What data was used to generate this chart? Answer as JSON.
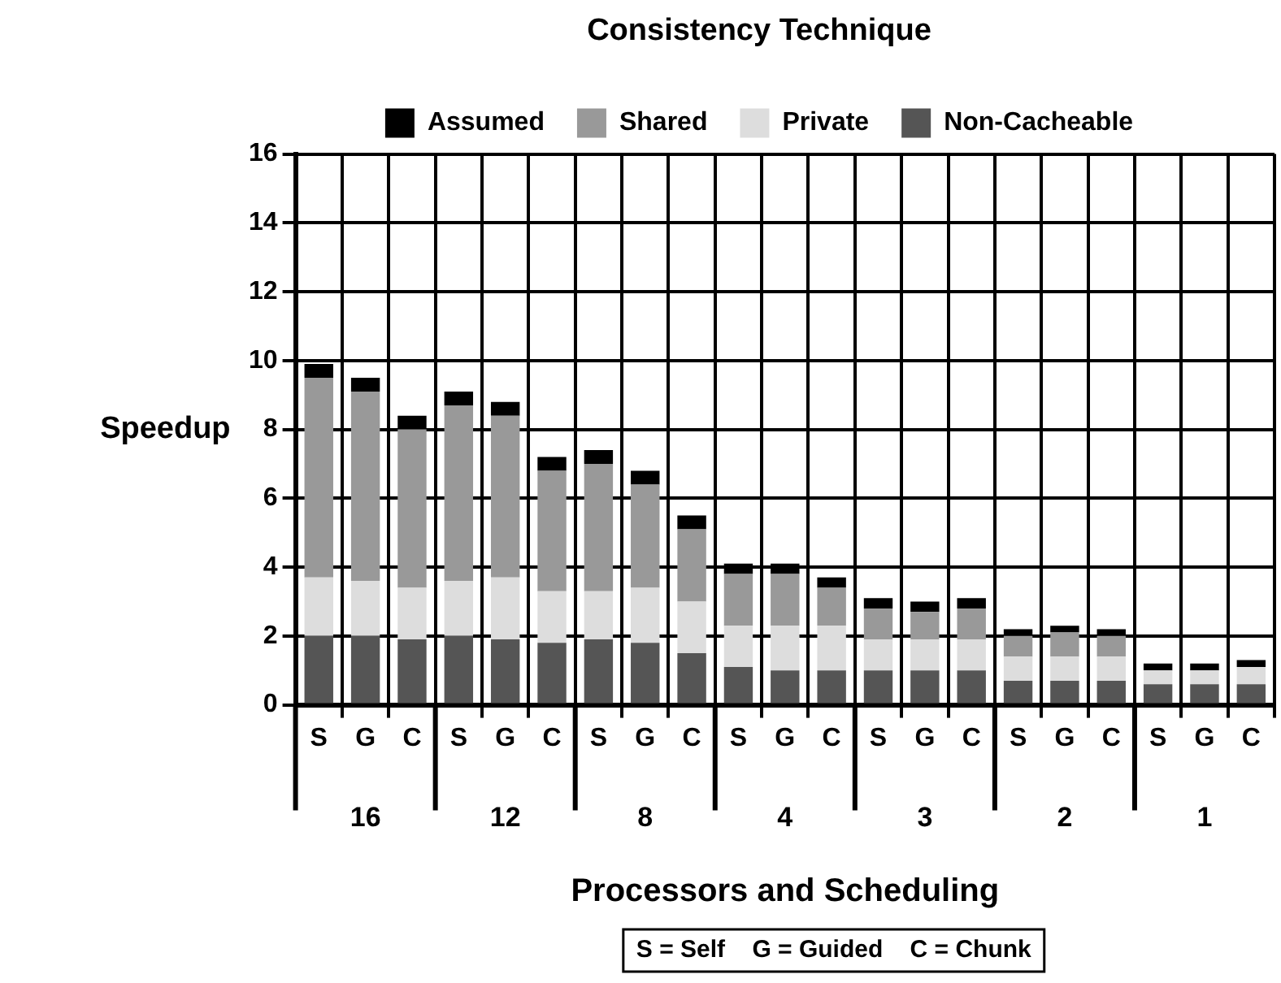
{
  "chart_data": {
    "type": "bar",
    "stacked": true,
    "legend_title": "Consistency Technique",
    "xlabel": "Processors and Scheduling",
    "ylabel": "Speedup",
    "categories": [
      "S",
      "G",
      "C",
      "S",
      "G",
      "C",
      "S",
      "G",
      "C",
      "S",
      "G",
      "C",
      "S",
      "G",
      "C",
      "S",
      "G",
      "C",
      "S",
      "G",
      "C"
    ],
    "series": [
      {
        "name": "Non-Cacheable",
        "color": "#555555",
        "values": [
          2.0,
          2.0,
          1.9,
          2.0,
          1.9,
          1.8,
          1.9,
          1.8,
          1.5,
          1.1,
          1.0,
          1.0,
          1.0,
          1.0,
          1.0,
          0.7,
          0.7,
          0.7,
          0.6,
          0.6,
          0.6
        ]
      },
      {
        "name": "Private",
        "color": "#dddddd",
        "values": [
          1.7,
          1.6,
          1.5,
          1.6,
          1.8,
          1.5,
          1.4,
          1.6,
          1.5,
          1.2,
          1.3,
          1.3,
          0.9,
          0.9,
          0.9,
          0.7,
          0.7,
          0.7,
          0.4,
          0.4,
          0.5
        ]
      },
      {
        "name": "Shared",
        "color": "#999999",
        "values": [
          5.8,
          5.5,
          4.6,
          5.1,
          4.7,
          3.5,
          3.7,
          3.0,
          2.1,
          1.5,
          1.5,
          1.1,
          0.9,
          0.8,
          0.9,
          0.6,
          0.7,
          0.6,
          0,
          0,
          0
        ]
      },
      {
        "name": "Assumed",
        "color": "#000000",
        "values": [
          0.4,
          0.4,
          0.4,
          0.4,
          0.4,
          0.4,
          0.4,
          0.4,
          0.4,
          0.3,
          0.3,
          0.3,
          0.3,
          0.3,
          0.3,
          0.2,
          0.2,
          0.2,
          0.2,
          0.2,
          0.2
        ]
      }
    ],
    "ylim": [
      0,
      16
    ],
    "yticks": [
      0,
      2,
      4,
      6,
      8,
      10,
      12,
      14,
      16
    ],
    "grid": true,
    "legend": "top",
    "annotations": [
      "16",
      "12",
      "8",
      "4",
      "3",
      "2",
      "1",
      "S = Self    G = Guided    C = Chunk"
    ]
  }
}
